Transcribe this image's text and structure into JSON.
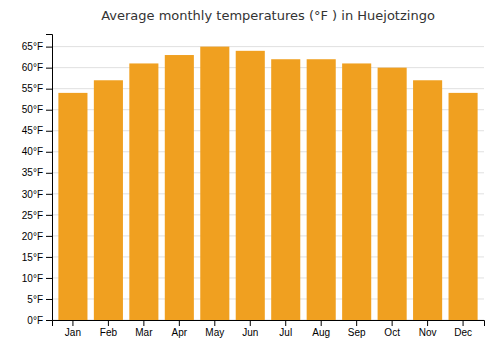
{
  "chart_data": {
    "type": "bar",
    "title": "Average monthly temperatures (°F ) in Huejotzingo",
    "categories": [
      "Jan",
      "Feb",
      "Mar",
      "Apr",
      "May",
      "Jun",
      "Jul",
      "Aug",
      "Sep",
      "Oct",
      "Nov",
      "Dec"
    ],
    "values": [
      54,
      57,
      61,
      63,
      65,
      64,
      62,
      62,
      61,
      60,
      57,
      54
    ],
    "color": "#F0A020",
    "ylim": [
      0,
      68
    ],
    "yticks": [
      {
        "value": 0,
        "label": "0°F"
      },
      {
        "value": 5,
        "label": "5°F"
      },
      {
        "value": 10,
        "label": "10°F"
      },
      {
        "value": 15,
        "label": "15°F"
      },
      {
        "value": 20,
        "label": "20°F"
      },
      {
        "value": 25,
        "label": "25°F"
      },
      {
        "value": 30,
        "label": "30°F"
      },
      {
        "value": 35,
        "label": "35°F"
      },
      {
        "value": 40,
        "label": "40°F"
      },
      {
        "value": 45,
        "label": "45°F"
      },
      {
        "value": 50,
        "label": "50°F"
      },
      {
        "value": 55,
        "label": "55°F"
      },
      {
        "value": 60,
        "label": "60°F"
      },
      {
        "value": 65,
        "label": "65°F"
      }
    ],
    "grid": true
  }
}
